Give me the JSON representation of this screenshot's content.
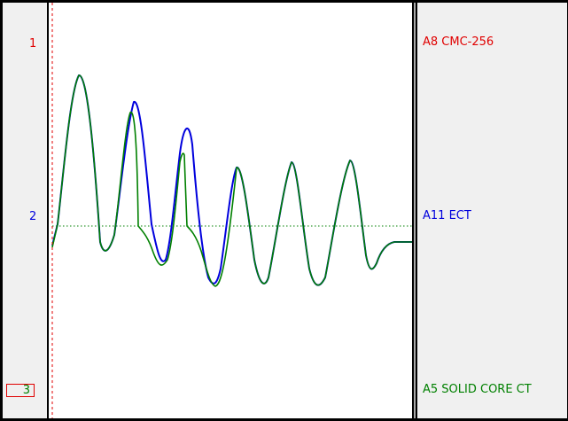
{
  "channels": [
    {
      "number": "1",
      "name": "A8 CMC-256",
      "color": "#e00000"
    },
    {
      "number": "2",
      "name": "A11 ECT",
      "color": "#0000dd"
    },
    {
      "number": "3",
      "name": "A5 SOLID CORE CT",
      "color": "#008000"
    }
  ],
  "cursor": {
    "color": "#e00000",
    "style": "dashed"
  },
  "reference_line": {
    "color": "#008000",
    "style": "dotted"
  }
}
